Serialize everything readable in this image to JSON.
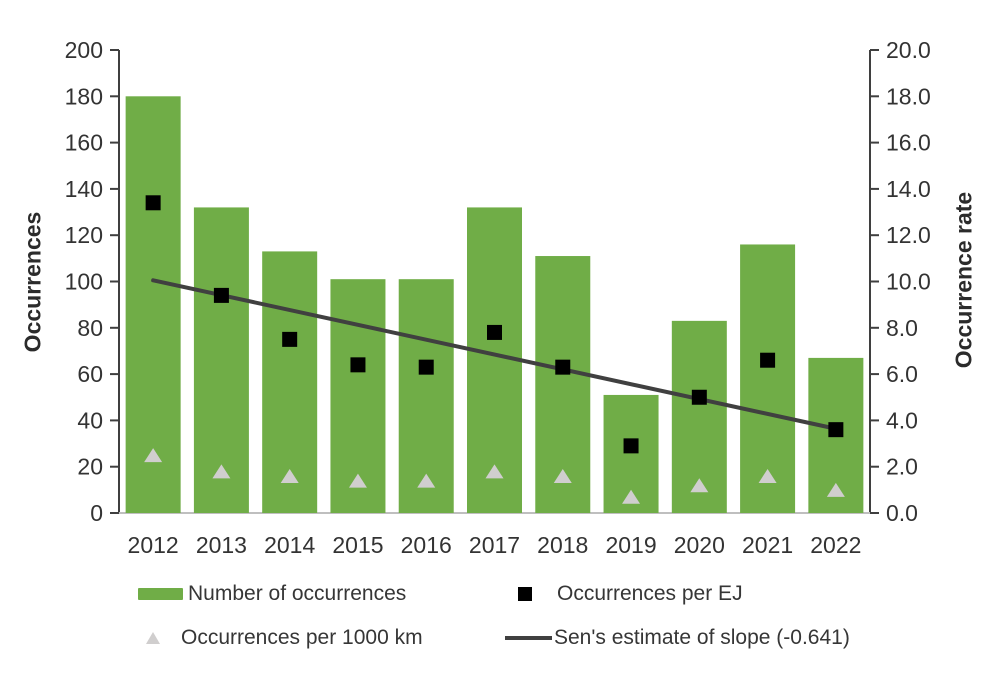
{
  "chart_data": {
    "type": "combo-bar-scatter-line",
    "title": "",
    "categories": [
      "2012",
      "2013",
      "2014",
      "2015",
      "2016",
      "2017",
      "2018",
      "2019",
      "2020",
      "2021",
      "2022"
    ],
    "series": [
      {
        "name": "Number of occurrences",
        "type": "bar",
        "axis": "left",
        "color": "#70ad47",
        "values": [
          180,
          132,
          113,
          101,
          101,
          132,
          111,
          51,
          83,
          116,
          67
        ]
      },
      {
        "name": "Occurrences per EJ",
        "type": "scatter",
        "marker": "square",
        "axis": "right",
        "color": "#000000",
        "values": [
          13.4,
          9.4,
          7.5,
          6.4,
          6.3,
          7.8,
          6.3,
          2.9,
          5.0,
          6.6,
          3.6
        ]
      },
      {
        "name": "Occurrences per 1000 km",
        "type": "scatter",
        "marker": "triangle",
        "axis": "right",
        "color": "#d0cece",
        "values": [
          2.5,
          1.8,
          1.6,
          1.4,
          1.4,
          1.8,
          1.6,
          0.7,
          1.2,
          1.6,
          1.0
        ]
      },
      {
        "name": "Sen's estimate of slope (-0.641)",
        "type": "line",
        "axis": "right",
        "color": "#404040",
        "slope_per_year": -0.641,
        "endpoints": {
          "x": [
            "2012",
            "2022"
          ],
          "y": [
            10.05,
            3.64
          ]
        }
      }
    ],
    "axes": {
      "left": {
        "title": "Occurrences",
        "min": 0,
        "max": 200,
        "step": 20,
        "tick_labels": [
          "0",
          "20",
          "40",
          "60",
          "80",
          "100",
          "120",
          "140",
          "160",
          "180",
          "200"
        ]
      },
      "right": {
        "title": "Occurrence rate",
        "min": 0,
        "max": 20,
        "step": 2,
        "tick_labels": [
          "0.0",
          "2.0",
          "4.0",
          "6.0",
          "8.0",
          "10.0",
          "12.0",
          "14.0",
          "16.0",
          "18.0",
          "20.0"
        ]
      }
    },
    "grid": false,
    "legend_position": "bottom",
    "colors": {
      "background": "#ffffff",
      "axis_line": "#3f3f3f",
      "x_axis_line": "#bfbfbf",
      "tick_text": "#333333"
    }
  }
}
